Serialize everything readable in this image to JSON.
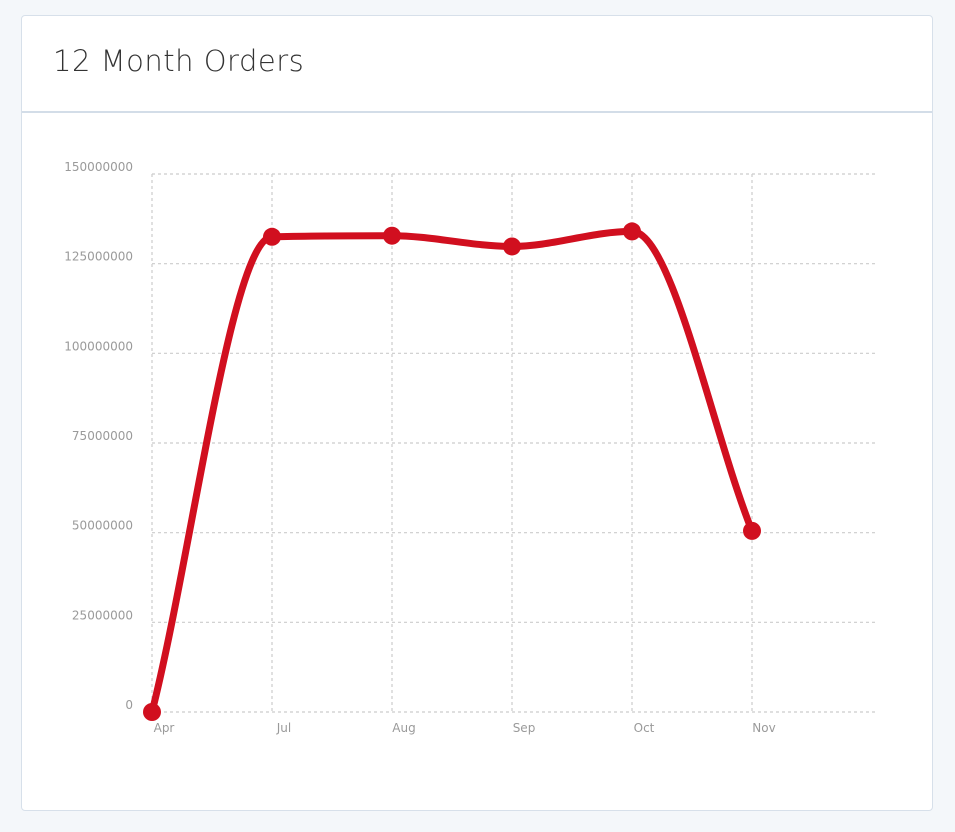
{
  "card": {
    "title": "12 Month Orders"
  },
  "colors": {
    "line": "#d10f1f",
    "grid": "#cccccc",
    "tick_text": "#9a9a9a"
  },
  "chart_data": {
    "type": "line",
    "title": "12 Month Orders",
    "xlabel": "",
    "ylabel": "",
    "categories": [
      "Apr",
      "Jul",
      "Aug",
      "Sep",
      "Oct",
      "Nov"
    ],
    "series": [
      {
        "values": [
          0,
          132500000,
          132800000,
          129800000,
          134000000,
          50500000
        ]
      }
    ],
    "y_ticks": [
      "0",
      "25000000",
      "50000000",
      "75000000",
      "100000000",
      "125000000",
      "150000000"
    ],
    "ylim": [
      0,
      150000000
    ],
    "grid": true,
    "smooth": true
  }
}
